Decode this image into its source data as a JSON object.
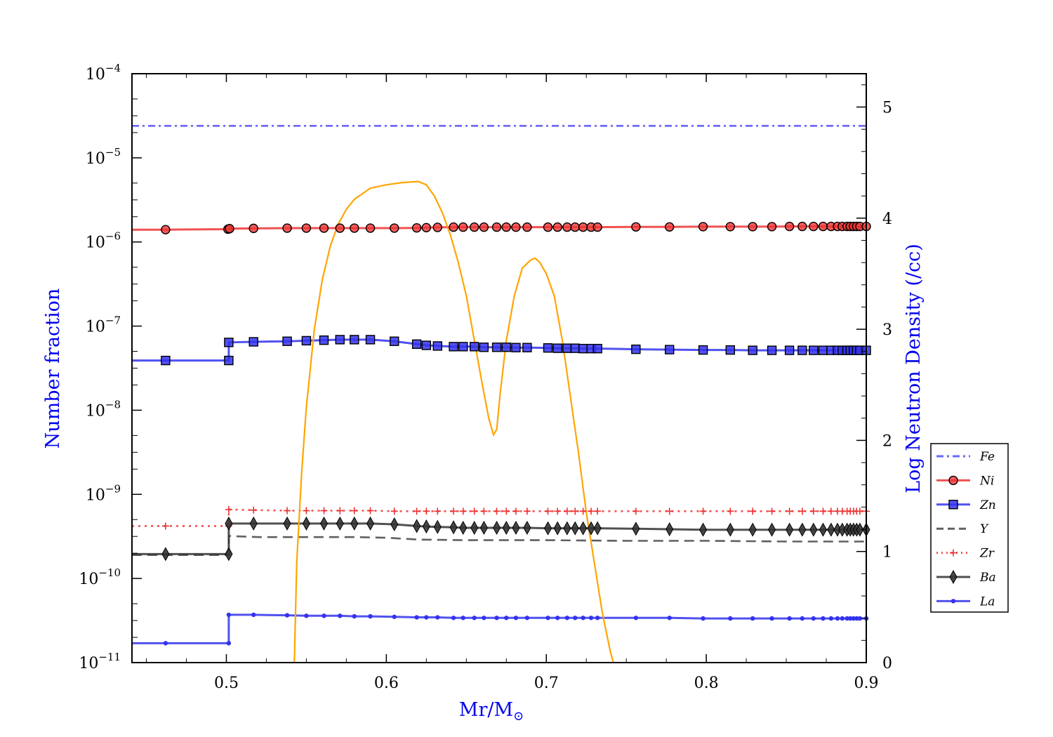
{
  "chart_data": {
    "type": "line",
    "title": "",
    "xlabel": "Mr/M",
    "xlabel_sub": "⊙",
    "ylabel": "Number fraction",
    "y2label": "Log Neutron Density (/cc)",
    "xlim": [
      0.441,
      0.9
    ],
    "ylim": [
      1e-11,
      0.0001
    ],
    "yscale": "log",
    "y2lim": [
      0,
      5.3
    ],
    "xticks": [
      "0.5",
      "0.6",
      "0.7",
      "0.8",
      "0.9"
    ],
    "yticks": [
      {
        "base": "10",
        "exp": "−4"
      },
      {
        "base": "10",
        "exp": "−5"
      },
      {
        "base": "10",
        "exp": "−6"
      },
      {
        "base": "10",
        "exp": "−7"
      },
      {
        "base": "10",
        "exp": "−8"
      },
      {
        "base": "10",
        "exp": "−9"
      },
      {
        "base": "10",
        "exp": "−10"
      },
      {
        "base": "10",
        "exp": "−11"
      }
    ],
    "y2ticks": [
      "0",
      "1",
      "2",
      "3",
      "4",
      "5"
    ],
    "legend_position": "right",
    "series": [
      {
        "name": "Fe",
        "color": "#4b4bff",
        "style": "dashdot",
        "marker": "none",
        "x": [
          0.441,
          0.9
        ],
        "y": [
          2.4e-05,
          2.4e-05
        ]
      },
      {
        "name": "Ni",
        "color": "#ee3333",
        "style": "solid",
        "marker": "circle",
        "x": [
          0.441,
          0.462,
          0.501,
          0.502,
          0.517,
          0.538,
          0.55,
          0.561,
          0.571,
          0.58,
          0.59,
          0.605,
          0.619,
          0.625,
          0.632,
          0.642,
          0.648,
          0.655,
          0.661,
          0.669,
          0.675,
          0.681,
          0.688,
          0.701,
          0.707,
          0.713,
          0.718,
          0.723,
          0.728,
          0.732,
          0.756,
          0.777,
          0.798,
          0.815,
          0.829,
          0.841,
          0.852,
          0.86,
          0.867,
          0.873,
          0.878,
          0.882,
          0.885,
          0.888,
          0.89,
          0.892,
          0.894,
          0.896,
          0.9
        ],
        "y": [
          1.4e-06,
          1.4e-06,
          1.42e-06,
          1.44e-06,
          1.45e-06,
          1.46e-06,
          1.46e-06,
          1.46e-06,
          1.46e-06,
          1.46e-06,
          1.46e-06,
          1.46e-06,
          1.47e-06,
          1.48e-06,
          1.49e-06,
          1.5e-06,
          1.5e-06,
          1.5e-06,
          1.5e-06,
          1.5e-06,
          1.5e-06,
          1.5e-06,
          1.5e-06,
          1.5e-06,
          1.5e-06,
          1.5e-06,
          1.5e-06,
          1.5e-06,
          1.5e-06,
          1.5e-06,
          1.51e-06,
          1.51e-06,
          1.52e-06,
          1.52e-06,
          1.52e-06,
          1.52e-06,
          1.53e-06,
          1.53e-06,
          1.53e-06,
          1.53e-06,
          1.53e-06,
          1.53e-06,
          1.53e-06,
          1.53e-06,
          1.53e-06,
          1.53e-06,
          1.53e-06,
          1.53e-06,
          1.53e-06
        ]
      },
      {
        "name": "Zn",
        "color": "#3333ee",
        "style": "solid",
        "marker": "square",
        "x": [
          0.441,
          0.462,
          0.5015,
          0.5015,
          0.517,
          0.538,
          0.55,
          0.561,
          0.571,
          0.58,
          0.59,
          0.605,
          0.619,
          0.625,
          0.632,
          0.642,
          0.648,
          0.655,
          0.661,
          0.669,
          0.675,
          0.681,
          0.688,
          0.701,
          0.707,
          0.713,
          0.718,
          0.723,
          0.728,
          0.732,
          0.756,
          0.777,
          0.798,
          0.815,
          0.829,
          0.841,
          0.852,
          0.86,
          0.867,
          0.873,
          0.878,
          0.882,
          0.885,
          0.888,
          0.89,
          0.892,
          0.894,
          0.896,
          0.9
        ],
        "y": [
          3.9e-08,
          3.9e-08,
          3.9e-08,
          6.4e-08,
          6.5e-08,
          6.6e-08,
          6.7e-08,
          6.8e-08,
          6.9e-08,
          6.9e-08,
          6.9e-08,
          6.6e-08,
          6.1e-08,
          5.9e-08,
          5.8e-08,
          5.7e-08,
          5.7e-08,
          5.7e-08,
          5.6e-08,
          5.6e-08,
          5.6e-08,
          5.55e-08,
          5.55e-08,
          5.5e-08,
          5.45e-08,
          5.45e-08,
          5.45e-08,
          5.4e-08,
          5.4e-08,
          5.4e-08,
          5.3e-08,
          5.25e-08,
          5.2e-08,
          5.2e-08,
          5.15e-08,
          5.15e-08,
          5.15e-08,
          5.15e-08,
          5.15e-08,
          5.15e-08,
          5.15e-08,
          5.15e-08,
          5.15e-08,
          5.15e-08,
          5.15e-08,
          5.15e-08,
          5.15e-08,
          5.15e-08,
          5.15e-08
        ]
      },
      {
        "name": "Y",
        "color": "#444444",
        "style": "dashed",
        "marker": "none",
        "x": [
          0.441,
          0.5015,
          0.5015,
          0.52,
          0.55,
          0.58,
          0.6,
          0.62,
          0.65,
          0.7,
          0.75,
          0.8,
          0.85,
          0.9
        ],
        "y": [
          1.9e-10,
          1.9e-10,
          3.2e-10,
          3.1e-10,
          3.1e-10,
          3.1e-10,
          3.05e-10,
          2.9e-10,
          2.85e-10,
          2.85e-10,
          2.8e-10,
          2.8e-10,
          2.75e-10,
          2.75e-10
        ]
      },
      {
        "name": "Zr",
        "color": "#ee3333",
        "style": "dotted",
        "marker": "plus",
        "x": [
          0.441,
          0.462,
          0.5015,
          0.5015,
          0.517,
          0.538,
          0.55,
          0.561,
          0.571,
          0.58,
          0.59,
          0.605,
          0.619,
          0.625,
          0.632,
          0.642,
          0.648,
          0.655,
          0.661,
          0.669,
          0.675,
          0.681,
          0.688,
          0.701,
          0.707,
          0.713,
          0.718,
          0.723,
          0.728,
          0.732,
          0.756,
          0.777,
          0.798,
          0.815,
          0.829,
          0.841,
          0.852,
          0.86,
          0.867,
          0.873,
          0.878,
          0.882,
          0.885,
          0.888,
          0.89,
          0.892,
          0.894,
          0.896,
          0.9
        ],
        "y": [
          4.2e-10,
          4.2e-10,
          4.2e-10,
          6.6e-10,
          6.5e-10,
          6.4e-10,
          6.4e-10,
          6.4e-10,
          6.4e-10,
          6.4e-10,
          6.4e-10,
          6.3e-10,
          6.3e-10,
          6.3e-10,
          6.3e-10,
          6.3e-10,
          6.3e-10,
          6.3e-10,
          6.3e-10,
          6.3e-10,
          6.3e-10,
          6.3e-10,
          6.3e-10,
          6.3e-10,
          6.3e-10,
          6.3e-10,
          6.3e-10,
          6.3e-10,
          6.3e-10,
          6.3e-10,
          6.3e-10,
          6.3e-10,
          6.3e-10,
          6.3e-10,
          6.3e-10,
          6.3e-10,
          6.3e-10,
          6.3e-10,
          6.3e-10,
          6.3e-10,
          6.3e-10,
          6.3e-10,
          6.3e-10,
          6.3e-10,
          6.3e-10,
          6.3e-10,
          6.3e-10,
          6.3e-10,
          6.3e-10
        ]
      },
      {
        "name": "Ba",
        "color": "#333333",
        "style": "solid",
        "marker": "diamond",
        "x": [
          0.441,
          0.462,
          0.5015,
          0.5015,
          0.517,
          0.538,
          0.55,
          0.561,
          0.571,
          0.58,
          0.59,
          0.605,
          0.619,
          0.625,
          0.632,
          0.642,
          0.648,
          0.655,
          0.661,
          0.669,
          0.675,
          0.681,
          0.688,
          0.701,
          0.707,
          0.713,
          0.718,
          0.723,
          0.728,
          0.732,
          0.756,
          0.777,
          0.798,
          0.815,
          0.829,
          0.841,
          0.852,
          0.86,
          0.867,
          0.873,
          0.878,
          0.882,
          0.885,
          0.888,
          0.89,
          0.892,
          0.894,
          0.896,
          0.9
        ],
        "y": [
          1.95e-10,
          1.95e-10,
          1.95e-10,
          4.5e-10,
          4.5e-10,
          4.5e-10,
          4.5e-10,
          4.5e-10,
          4.5e-10,
          4.5e-10,
          4.5e-10,
          4.4e-10,
          4.2e-10,
          4.15e-10,
          4.1e-10,
          4.05e-10,
          4e-10,
          4e-10,
          4e-10,
          4e-10,
          4e-10,
          4e-10,
          4e-10,
          3.95e-10,
          3.95e-10,
          3.95e-10,
          3.95e-10,
          3.95e-10,
          3.95e-10,
          3.95e-10,
          3.9e-10,
          3.85e-10,
          3.8e-10,
          3.8e-10,
          3.8e-10,
          3.8e-10,
          3.8e-10,
          3.8e-10,
          3.8e-10,
          3.8e-10,
          3.8e-10,
          3.8e-10,
          3.8e-10,
          3.8e-10,
          3.8e-10,
          3.8e-10,
          3.8e-10,
          3.8e-10,
          3.8e-10
        ]
      },
      {
        "name": "La",
        "color": "#3333ee",
        "style": "solid",
        "marker": "dot",
        "x": [
          0.441,
          0.462,
          0.5015,
          0.5015,
          0.517,
          0.538,
          0.55,
          0.561,
          0.571,
          0.58,
          0.59,
          0.605,
          0.619,
          0.625,
          0.632,
          0.642,
          0.648,
          0.655,
          0.661,
          0.669,
          0.675,
          0.681,
          0.688,
          0.701,
          0.707,
          0.713,
          0.718,
          0.723,
          0.728,
          0.732,
          0.756,
          0.777,
          0.798,
          0.815,
          0.829,
          0.841,
          0.852,
          0.86,
          0.867,
          0.873,
          0.878,
          0.882,
          0.885,
          0.888,
          0.89,
          0.892,
          0.894,
          0.896,
          0.9
        ],
        "y": [
          1.7e-11,
          1.7e-11,
          1.7e-11,
          3.7e-11,
          3.7e-11,
          3.65e-11,
          3.6e-11,
          3.6e-11,
          3.6e-11,
          3.55e-11,
          3.55e-11,
          3.5e-11,
          3.45e-11,
          3.45e-11,
          3.45e-11,
          3.4e-11,
          3.4e-11,
          3.4e-11,
          3.4e-11,
          3.4e-11,
          3.4e-11,
          3.4e-11,
          3.4e-11,
          3.4e-11,
          3.4e-11,
          3.4e-11,
          3.4e-11,
          3.4e-11,
          3.4e-11,
          3.4e-11,
          3.4e-11,
          3.4e-11,
          3.35e-11,
          3.35e-11,
          3.35e-11,
          3.35e-11,
          3.35e-11,
          3.35e-11,
          3.35e-11,
          3.35e-11,
          3.35e-11,
          3.35e-11,
          3.35e-11,
          3.35e-11,
          3.35e-11,
          3.35e-11,
          3.35e-11,
          3.35e-11,
          3.35e-11
        ]
      }
    ],
    "neutron_density": {
      "color": "#ffa500",
      "x": [
        0.5425,
        0.544,
        0.547,
        0.55,
        0.555,
        0.56,
        0.565,
        0.57,
        0.575,
        0.58,
        0.59,
        0.6,
        0.61,
        0.62,
        0.625,
        0.63,
        0.635,
        0.64,
        0.645,
        0.65,
        0.655,
        0.66,
        0.664,
        0.667,
        0.669,
        0.671,
        0.675,
        0.68,
        0.685,
        0.69,
        0.693,
        0.696,
        0.7,
        0.705,
        0.71,
        0.715,
        0.72,
        0.725,
        0.73,
        0.735,
        0.74,
        0.742
      ],
      "y": [
        0,
        0.9,
        1.7,
        2.3,
        3.0,
        3.45,
        3.75,
        3.95,
        4.08,
        4.17,
        4.27,
        4.3,
        4.32,
        4.33,
        4.3,
        4.2,
        4.05,
        3.85,
        3.6,
        3.3,
        2.9,
        2.5,
        2.2,
        2.05,
        2.1,
        2.4,
        2.9,
        3.3,
        3.55,
        3.62,
        3.64,
        3.6,
        3.5,
        3.3,
        2.9,
        2.4,
        1.9,
        1.35,
        0.9,
        0.45,
        0.1,
        0
      ]
    }
  }
}
